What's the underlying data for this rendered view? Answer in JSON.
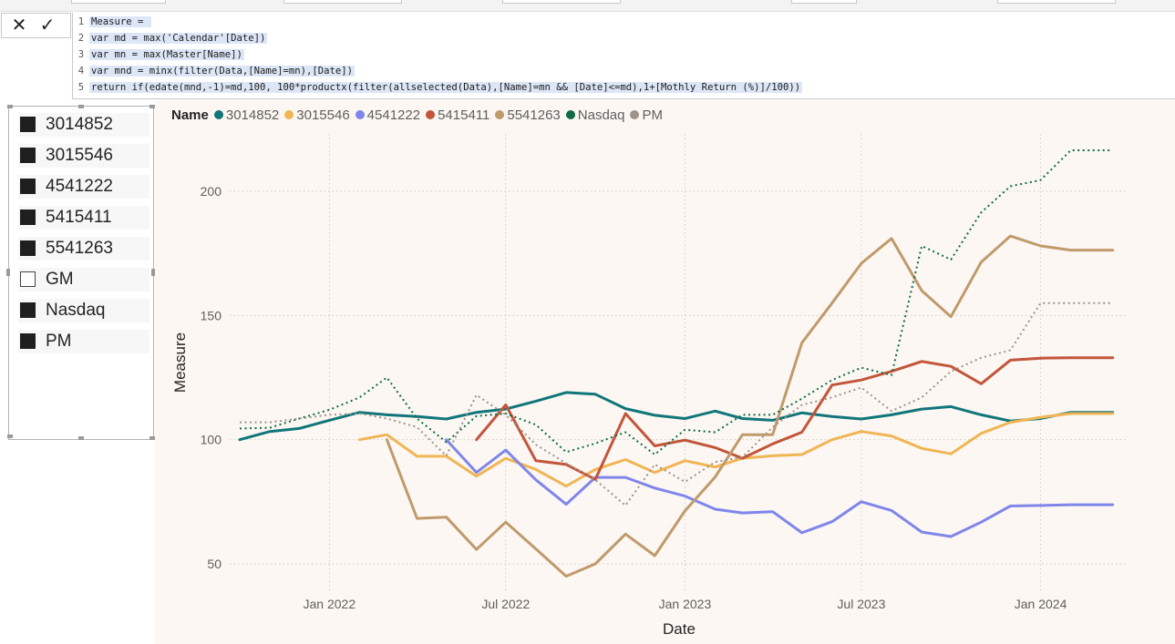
{
  "formula_bar": {
    "cancel_icon": "x-icon",
    "commit_icon": "check-icon",
    "lines": [
      {
        "num": "1",
        "text": "Measure = "
      },
      {
        "num": "2",
        "text": "var md = max('Calendar'[Date])"
      },
      {
        "num": "3",
        "text": "var mn = max(Master[Name])"
      },
      {
        "num": "4",
        "text": "var mnd = minx(filter(Data,[Name]=mn),[Date])"
      },
      {
        "num": "5",
        "text": "return if(edate(mnd,-1)=md,100, 100*productx(filter(allselected(Data),[Name]=mn && [Date]<=md),1+[Mothly Return (%)]/100))"
      }
    ]
  },
  "slicer": {
    "items": [
      {
        "label": "3014852",
        "checked": true
      },
      {
        "label": "3015546",
        "checked": true
      },
      {
        "label": "4541222",
        "checked": true
      },
      {
        "label": "5415411",
        "checked": true
      },
      {
        "label": "5541263",
        "checked": true
      },
      {
        "label": "GM",
        "checked": false
      },
      {
        "label": "Nasdaq",
        "checked": true
      },
      {
        "label": "PM",
        "checked": true
      }
    ]
  },
  "legend": {
    "title": "Name",
    "items": [
      {
        "label": "3014852",
        "color": "#10767a"
      },
      {
        "label": "3015546",
        "color": "#f0b554"
      },
      {
        "label": "4541222",
        "color": "#7f86ea"
      },
      {
        "label": "5415411",
        "color": "#c2553a"
      },
      {
        "label": "5541263",
        "color": "#c09a6b"
      },
      {
        "label": "Nasdaq",
        "color": "#0e6a47"
      },
      {
        "label": "PM",
        "color": "#9e928a"
      }
    ]
  },
  "chart_data": {
    "type": "line",
    "xlabel": "Date",
    "ylabel": "Measure",
    "ylim": [
      39,
      222
    ],
    "xlim": [
      "2021-10-01",
      "2024-03-20"
    ],
    "x_ticks": [
      {
        "date": "2022-01-01",
        "label": "Jan 2022"
      },
      {
        "date": "2022-07-01",
        "label": "Jul 2022"
      },
      {
        "date": "2023-01-01",
        "label": "Jan 2023"
      },
      {
        "date": "2023-07-01",
        "label": "Jul 2023"
      },
      {
        "date": "2024-01-01",
        "label": "Jan 2024"
      }
    ],
    "y_ticks": [
      50,
      100,
      150,
      200
    ],
    "grid": true,
    "series": [
      {
        "name": "3014852",
        "color": "#10767a",
        "dashed": false,
        "points": [
          [
            "2021-10-01",
            100
          ],
          [
            "2021-11-01",
            103.3
          ],
          [
            "2021-12-01",
            104.5
          ],
          [
            "2022-01-01",
            107.8
          ],
          [
            "2022-02-01",
            111
          ],
          [
            "2022-03-01",
            110
          ],
          [
            "2022-04-01",
            109.3
          ],
          [
            "2022-05-01",
            108.3
          ],
          [
            "2022-06-01",
            111
          ],
          [
            "2022-07-01",
            112.3
          ],
          [
            "2022-08-01",
            115.5
          ],
          [
            "2022-09-01",
            119
          ],
          [
            "2022-10-01",
            118.3
          ],
          [
            "2022-11-01",
            112.5
          ],
          [
            "2022-12-01",
            109.8
          ],
          [
            "2023-01-01",
            108.5
          ],
          [
            "2023-02-01",
            111.5
          ],
          [
            "2023-03-01",
            108.5
          ],
          [
            "2023-04-01",
            107.8
          ],
          [
            "2023-05-01",
            110.8
          ],
          [
            "2023-06-01",
            109.3
          ],
          [
            "2023-07-01",
            108.3
          ],
          [
            "2023-08-01",
            110
          ],
          [
            "2023-09-01",
            112.3
          ],
          [
            "2023-10-01",
            113.3
          ],
          [
            "2023-11-01",
            110
          ],
          [
            "2023-12-01",
            107.5
          ],
          [
            "2024-01-01",
            108.5
          ],
          [
            "2024-02-01",
            111
          ],
          [
            "2024-03-01",
            111
          ],
          [
            "2024-03-15",
            111
          ]
        ]
      },
      {
        "name": "3015546",
        "color": "#f0b554",
        "dashed": false,
        "points": [
          [
            "2022-02-01",
            100
          ],
          [
            "2022-03-01",
            102
          ],
          [
            "2022-04-01",
            93.3
          ],
          [
            "2022-05-01",
            93.3
          ],
          [
            "2022-06-01",
            85.3
          ],
          [
            "2022-07-01",
            92.5
          ],
          [
            "2022-08-01",
            88
          ],
          [
            "2022-09-01",
            81.3
          ],
          [
            "2022-10-01",
            88
          ],
          [
            "2022-11-01",
            92
          ],
          [
            "2022-12-01",
            86.8
          ],
          [
            "2023-01-01",
            91.5
          ],
          [
            "2023-02-01",
            89
          ],
          [
            "2023-03-01",
            92.5
          ],
          [
            "2023-04-01",
            93.5
          ],
          [
            "2023-05-01",
            94
          ],
          [
            "2023-06-01",
            100
          ],
          [
            "2023-07-01",
            103.3
          ],
          [
            "2023-08-01",
            101.5
          ],
          [
            "2023-09-01",
            96.5
          ],
          [
            "2023-10-01",
            94.3
          ],
          [
            "2023-11-01",
            102.5
          ],
          [
            "2023-12-01",
            107
          ],
          [
            "2024-01-01",
            109
          ],
          [
            "2024-02-01",
            110.5
          ],
          [
            "2024-03-01",
            110.5
          ],
          [
            "2024-03-15",
            110.5
          ]
        ]
      },
      {
        "name": "4541222",
        "color": "#7f86ea",
        "dashed": false,
        "points": [
          [
            "2022-05-01",
            100
          ],
          [
            "2022-06-01",
            86.8
          ],
          [
            "2022-07-01",
            95.8
          ],
          [
            "2022-08-01",
            83.8
          ],
          [
            "2022-09-01",
            74
          ],
          [
            "2022-10-01",
            84.8
          ],
          [
            "2022-11-01",
            84.8
          ],
          [
            "2022-12-01",
            80.5
          ],
          [
            "2023-01-01",
            77.3
          ],
          [
            "2023-02-01",
            72
          ],
          [
            "2023-03-01",
            70.5
          ],
          [
            "2023-04-01",
            71
          ],
          [
            "2023-05-01",
            62.5
          ],
          [
            "2023-06-01",
            67
          ],
          [
            "2023-07-01",
            75
          ],
          [
            "2023-08-01",
            71.5
          ],
          [
            "2023-09-01",
            62.8
          ],
          [
            "2023-10-01",
            61
          ],
          [
            "2023-11-01",
            66.8
          ],
          [
            "2023-12-01",
            73.3
          ],
          [
            "2024-01-01",
            73.5
          ],
          [
            "2024-02-01",
            73.8
          ],
          [
            "2024-03-01",
            73.8
          ],
          [
            "2024-03-15",
            73.8
          ]
        ]
      },
      {
        "name": "5415411",
        "color": "#c2553a",
        "dashed": false,
        "points": [
          [
            "2022-06-01",
            100
          ],
          [
            "2022-07-01",
            114
          ],
          [
            "2022-08-01",
            91.5
          ],
          [
            "2022-09-01",
            90
          ],
          [
            "2022-10-01",
            84
          ],
          [
            "2022-11-01",
            110.5
          ],
          [
            "2022-12-01",
            97.5
          ],
          [
            "2023-01-01",
            99.8
          ],
          [
            "2023-02-01",
            96.8
          ],
          [
            "2023-03-01",
            92.5
          ],
          [
            "2023-04-01",
            98.3
          ],
          [
            "2023-05-01",
            103
          ],
          [
            "2023-06-01",
            122
          ],
          [
            "2023-07-01",
            124
          ],
          [
            "2023-08-01",
            127.5
          ],
          [
            "2023-09-01",
            131.5
          ],
          [
            "2023-10-01",
            129.5
          ],
          [
            "2023-11-01",
            122.5
          ],
          [
            "2023-12-01",
            132
          ],
          [
            "2024-01-01",
            132.8
          ],
          [
            "2024-02-01",
            133
          ],
          [
            "2024-03-01",
            133
          ],
          [
            "2024-03-15",
            133
          ]
        ]
      },
      {
        "name": "5541263",
        "color": "#c09a6b",
        "dashed": false,
        "points": [
          [
            "2022-03-01",
            100
          ],
          [
            "2022-04-01",
            68.3
          ],
          [
            "2022-05-01",
            68.8
          ],
          [
            "2022-06-01",
            55.8
          ],
          [
            "2022-07-01",
            66.8
          ],
          [
            "2022-08-01",
            56
          ],
          [
            "2022-09-01",
            45
          ],
          [
            "2022-10-01",
            50
          ],
          [
            "2022-11-01",
            62
          ],
          [
            "2022-12-01",
            53.3
          ],
          [
            "2023-01-01",
            71.3
          ],
          [
            "2023-02-01",
            85
          ],
          [
            "2023-03-01",
            102
          ],
          [
            "2023-04-01",
            102
          ],
          [
            "2023-05-01",
            139
          ],
          [
            "2023-06-01",
            155
          ],
          [
            "2023-07-01",
            171
          ],
          [
            "2023-08-01",
            181
          ],
          [
            "2023-09-01",
            160
          ],
          [
            "2023-10-01",
            149.5
          ],
          [
            "2023-11-01",
            171.5
          ],
          [
            "2023-12-01",
            182
          ],
          [
            "2024-01-01",
            178
          ],
          [
            "2024-02-01",
            176.3
          ],
          [
            "2024-03-01",
            176.3
          ],
          [
            "2024-03-15",
            176.3
          ]
        ]
      },
      {
        "name": "Nasdaq",
        "color": "#0e6a47",
        "dashed": true,
        "points": [
          [
            "2021-10-01",
            104.5
          ],
          [
            "2021-11-01",
            104.8
          ],
          [
            "2021-12-01",
            108.5
          ],
          [
            "2022-01-01",
            112
          ],
          [
            "2022-02-01",
            117
          ],
          [
            "2022-03-01",
            125
          ],
          [
            "2022-04-01",
            108.5
          ],
          [
            "2022-05-01",
            99
          ],
          [
            "2022-06-01",
            109.5
          ],
          [
            "2022-07-01",
            110.5
          ],
          [
            "2022-08-01",
            106
          ],
          [
            "2022-09-01",
            95
          ],
          [
            "2022-10-01",
            98.5
          ],
          [
            "2022-11-01",
            103
          ],
          [
            "2022-12-01",
            94
          ],
          [
            "2023-01-01",
            104
          ],
          [
            "2023-02-01",
            103
          ],
          [
            "2023-03-01",
            110
          ],
          [
            "2023-04-01",
            110
          ],
          [
            "2023-05-01",
            116.5
          ],
          [
            "2023-06-01",
            124
          ],
          [
            "2023-07-01",
            129
          ],
          [
            "2023-08-01",
            126
          ],
          [
            "2023-09-01",
            178
          ],
          [
            "2023-10-01",
            172.5
          ],
          [
            "2023-11-01",
            191.5
          ],
          [
            "2023-12-01",
            202
          ],
          [
            "2024-01-01",
            204.5
          ],
          [
            "2024-02-01",
            216.5
          ],
          [
            "2024-03-01",
            216.5
          ],
          [
            "2024-03-15",
            216.5
          ]
        ]
      },
      {
        "name": "PM",
        "color": "#9e928a",
        "dashed": true,
        "points": [
          [
            "2021-10-01",
            107
          ],
          [
            "2021-11-01",
            107
          ],
          [
            "2021-12-01",
            108.5
          ],
          [
            "2022-01-01",
            110
          ],
          [
            "2022-02-01",
            110.5
          ],
          [
            "2022-03-01",
            108.5
          ],
          [
            "2022-04-01",
            105
          ],
          [
            "2022-05-01",
            93.5
          ],
          [
            "2022-06-01",
            118
          ],
          [
            "2022-07-01",
            110
          ],
          [
            "2022-08-01",
            98
          ],
          [
            "2022-09-01",
            90.5
          ],
          [
            "2022-10-01",
            83.8
          ],
          [
            "2022-11-01",
            73.5
          ],
          [
            "2022-12-01",
            90
          ],
          [
            "2023-01-01",
            83
          ],
          [
            "2023-02-01",
            91
          ],
          [
            "2023-03-01",
            93
          ],
          [
            "2023-04-01",
            105
          ],
          [
            "2023-05-01",
            114
          ],
          [
            "2023-06-01",
            117
          ],
          [
            "2023-07-01",
            121
          ],
          [
            "2023-08-01",
            111.5
          ],
          [
            "2023-09-01",
            117
          ],
          [
            "2023-10-01",
            127.5
          ],
          [
            "2023-11-01",
            133
          ],
          [
            "2023-12-01",
            136
          ],
          [
            "2024-01-01",
            155
          ],
          [
            "2024-02-01",
            155
          ],
          [
            "2024-03-01",
            155
          ],
          [
            "2024-03-15",
            155
          ]
        ]
      }
    ]
  }
}
